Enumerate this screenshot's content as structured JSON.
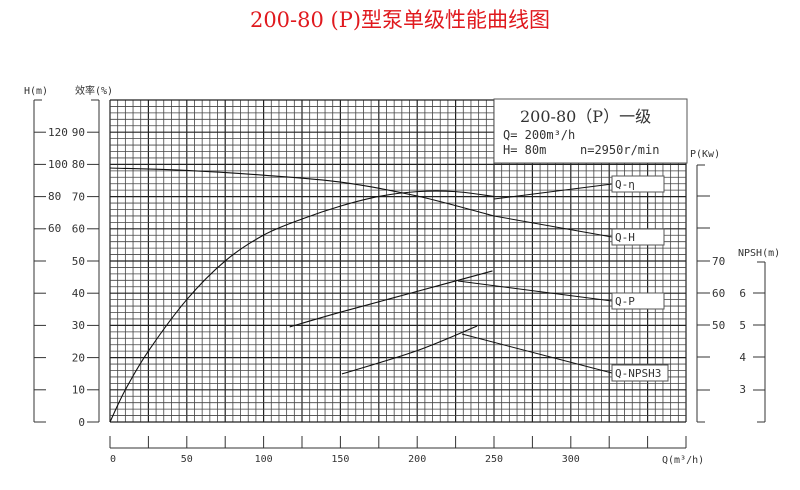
{
  "title": "200-80 (P)型泵单级性能曲线图",
  "info_box": {
    "model": "200-80（P）一级",
    "flow": "Q= 200m³/h",
    "head": "H= 80m",
    "speed": "n=2950r/min"
  },
  "chart_data": {
    "type": "line",
    "title": "200-80 (P)型泵单级性能曲线图",
    "xlabel": "Q(m³/h)",
    "xlim": [
      0,
      375
    ],
    "x_ticks": [
      "0",
      "50",
      "100",
      "150",
      "200",
      "250",
      "300"
    ],
    "grid": true,
    "axes": {
      "H": {
        "label": "H(m)",
        "ticks": [
          "120",
          "100",
          "80",
          "60"
        ]
      },
      "eff": {
        "label": "效率(%)",
        "ticks": [
          "90",
          "80",
          "70",
          "60",
          "50",
          "40",
          "30",
          "20",
          "10",
          "0"
        ],
        "ylim": [
          0,
          100
        ]
      },
      "P": {
        "label": "P(Kw)",
        "ticks": [
          "70",
          "60",
          "50"
        ]
      },
      "NPSH": {
        "label": "NPSH(m)",
        "ticks": [
          "6",
          "5",
          "4",
          "3"
        ]
      }
    },
    "series": [
      {
        "name": "Q-η",
        "axis": "eff",
        "x": [
          0,
          10,
          25,
          50,
          75,
          100,
          125,
          150,
          175,
          200,
          225,
          250
        ],
        "y": [
          0,
          10,
          22,
          38,
          50,
          58,
          63,
          67,
          70,
          71.5,
          71.5,
          70
        ]
      },
      {
        "name": "Q-H",
        "axis": "H",
        "x": [
          0,
          50,
          100,
          150,
          200,
          250
        ],
        "y": [
          97.5,
          96,
          93,
          88.7,
          80,
          67.5
        ]
      },
      {
        "name": "Q-P",
        "axis": "P",
        "x": [
          117,
          150,
          200,
          249
        ],
        "y": [
          49.4,
          54,
          60.5,
          66.9
        ]
      },
      {
        "name": "Q-NPSH3",
        "axis": "NPSH",
        "x": [
          151,
          200,
          239
        ],
        "y": [
          3.47,
          4.2,
          4.97
        ]
      }
    ]
  }
}
